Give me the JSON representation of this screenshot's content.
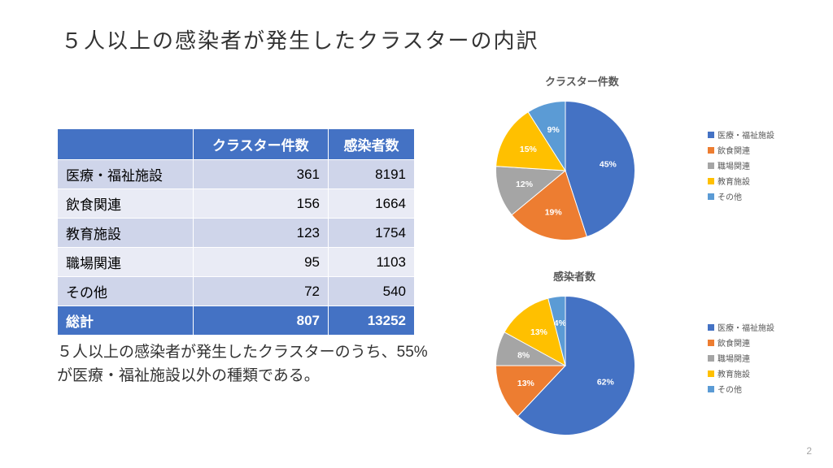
{
  "title": "５人以上の感染者が発生したクラスターの内訳",
  "table": {
    "headers": [
      "",
      "クラスター件数",
      "感染者数"
    ],
    "rows": [
      {
        "label": "医療・福祉施設",
        "c1": "361",
        "c2": "8191"
      },
      {
        "label": "飲食関連",
        "c1": "156",
        "c2": "1664"
      },
      {
        "label": "教育施設",
        "c1": "123",
        "c2": "1754"
      },
      {
        "label": "職場関連",
        "c1": "95",
        "c2": "1103"
      },
      {
        "label": "その他",
        "c1": "72",
        "c2": "540"
      }
    ],
    "total": {
      "label": "総計",
      "c1": "807",
      "c2": "13252"
    },
    "header_bg": "#4472c4",
    "row_odd_bg": "#cfd5ea",
    "row_even_bg": "#e9ebf5"
  },
  "caption": "５人以上の感染者が発生したクラスターのうち、55%が医療・福祉施設以外の種類である。",
  "categories": [
    {
      "name": "医療・福祉施設",
      "color": "#4472c4"
    },
    {
      "name": "飲食関連",
      "color": "#ed7d31"
    },
    {
      "name": "職場関連",
      "color": "#a5a5a5"
    },
    {
      "name": "教育施設",
      "color": "#ffc000"
    },
    {
      "name": "その他",
      "color": "#5b9bd5"
    }
  ],
  "chart1": {
    "title": "クラスター件数",
    "slices": [
      {
        "pct": 45,
        "label": "45%",
        "color": "#4472c4"
      },
      {
        "pct": 19,
        "label": "19%",
        "color": "#ed7d31"
      },
      {
        "pct": 12,
        "label": "12%",
        "color": "#a5a5a5"
      },
      {
        "pct": 15,
        "label": "15%",
        "color": "#ffc000"
      },
      {
        "pct": 9,
        "label": "9%",
        "color": "#5b9bd5"
      }
    ]
  },
  "chart2": {
    "title": "感染者数",
    "slices": [
      {
        "pct": 62,
        "label": "62%",
        "color": "#4472c4"
      },
      {
        "pct": 13,
        "label": "13%",
        "color": "#ed7d31"
      },
      {
        "pct": 8,
        "label": "8%",
        "color": "#a5a5a5"
      },
      {
        "pct": 13,
        "label": "13%",
        "color": "#ffc000"
      },
      {
        "pct": 4,
        "label": "4%",
        "color": "#5b9bd5"
      }
    ]
  },
  "page_number": "2"
}
